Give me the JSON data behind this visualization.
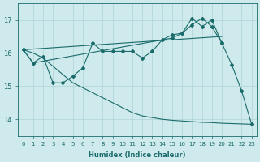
{
  "xlabel": "Humidex (Indice chaleur)",
  "x_values": [
    0,
    1,
    2,
    3,
    4,
    5,
    6,
    7,
    8,
    9,
    10,
    11,
    12,
    13,
    14,
    15,
    16,
    17,
    18,
    19,
    20,
    21,
    22,
    23
  ],
  "spiky_line": [
    16.1,
    15.7,
    15.9,
    15.1,
    15.1,
    15.3,
    15.55,
    16.3,
    16.05,
    16.05,
    16.05,
    16.05,
    15.85,
    16.05,
    16.4,
    16.55,
    16.6,
    16.85,
    17.05,
    16.8,
    16.3,
    15.65,
    14.85,
    13.85
  ],
  "upper_peaky": [
    16.1,
    15.7,
    null,
    null,
    null,
    null,
    null,
    null,
    null,
    null,
    null,
    null,
    null,
    null,
    null,
    16.45,
    16.6,
    17.05,
    16.8,
    17.0,
    16.3,
    null,
    null,
    null
  ],
  "trend_up": [
    16.1,
    16.12,
    16.14,
    16.16,
    16.18,
    16.2,
    16.22,
    16.24,
    16.26,
    16.28,
    16.3,
    16.32,
    16.34,
    16.36,
    16.38,
    16.4,
    16.42,
    16.44,
    16.46,
    16.48,
    16.5,
    null,
    null,
    null
  ],
  "trend_down": [
    16.1,
    16.0,
    15.85,
    15.6,
    15.35,
    15.1,
    14.95,
    14.8,
    14.65,
    14.5,
    14.35,
    14.2,
    14.1,
    14.05,
    14.0,
    13.97,
    13.95,
    13.93,
    13.91,
    13.9,
    13.88,
    13.87,
    13.86,
    13.85
  ],
  "bg_color": "#ceeaec",
  "line_color": "#1a6b6b",
  "grid_color": "#aed4d6",
  "ylim": [
    13.5,
    17.5
  ],
  "yticks": [
    14,
    15,
    16,
    17
  ],
  "xlim": [
    -0.5,
    23.5
  ]
}
